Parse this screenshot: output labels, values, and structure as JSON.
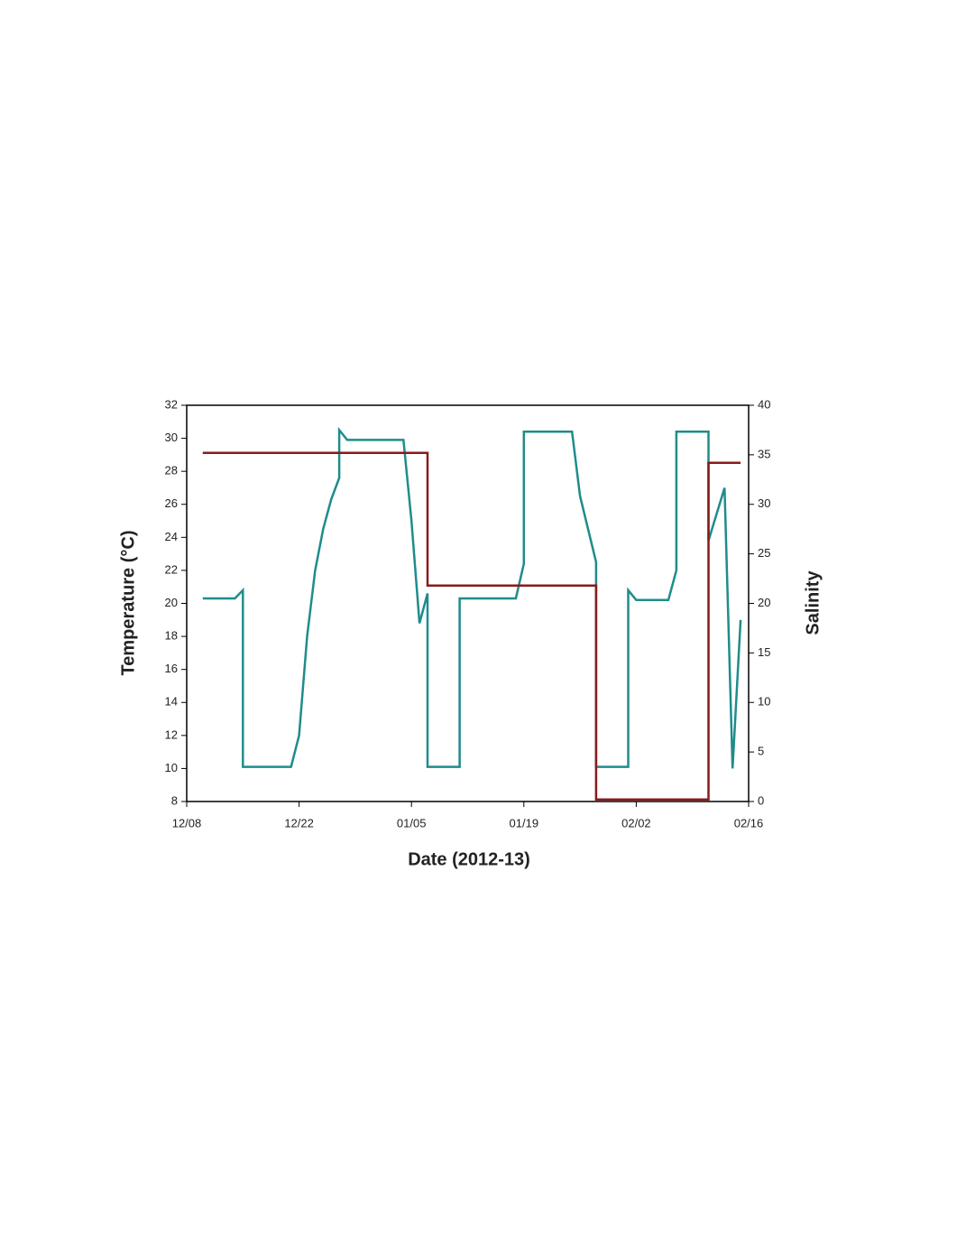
{
  "chart_data": {
    "type": "line",
    "x_label": "Date (2012-13)",
    "y_label": "Temperature (°C)",
    "y2_label": "Salinity",
    "xlim": [
      "12/08",
      "02/16"
    ],
    "xticks": [
      "12/08",
      "12/22",
      "01/05",
      "01/19",
      "02/02",
      "02/16"
    ],
    "ylim": [
      8,
      32
    ],
    "yticks": [
      8,
      10,
      12,
      14,
      16,
      18,
      20,
      22,
      24,
      26,
      28,
      30,
      32
    ],
    "y2lim": [
      0,
      40
    ],
    "y2ticks": [
      0,
      5,
      10,
      15,
      20,
      25,
      30,
      35,
      40
    ],
    "series": [
      {
        "name": "Temperature",
        "color": "#1f8c8c",
        "x": [
          "12/10",
          "12/14",
          "12/15",
          "12/15",
          "12/21",
          "12/22",
          "12/23",
          "12/24",
          "12/25",
          "12/26",
          "12/27",
          "12/27",
          "12/28",
          "01/04",
          "01/05",
          "01/06",
          "01/07",
          "01/07",
          "01/11",
          "01/11",
          "01/18",
          "01/19",
          "01/19",
          "01/25",
          "01/26",
          "01/27",
          "01/28",
          "01/28",
          "02/01",
          "02/01",
          "02/02",
          "02/06",
          "02/07",
          "02/07",
          "02/11",
          "02/11",
          "02/13",
          "02/14",
          "02/15"
        ],
        "values": [
          20.3,
          20.3,
          20.8,
          10.1,
          10.1,
          12,
          18,
          22,
          24.5,
          26.3,
          27.6,
          30.5,
          29.9,
          29.9,
          25,
          18.8,
          20.6,
          10.1,
          10.1,
          20.3,
          20.3,
          22.4,
          30.4,
          30.4,
          26.5,
          24.5,
          22.5,
          10.1,
          10.1,
          20.8,
          20.2,
          20.2,
          22,
          30.4,
          30.4,
          23.8,
          27,
          10,
          19
        ]
      },
      {
        "name": "Salinity",
        "color": "#8b1a1a",
        "axis": "y2",
        "x": [
          "12/10",
          "01/07",
          "01/07",
          "01/28",
          "01/28",
          "02/11",
          "02/11",
          "02/15"
        ],
        "values": [
          35.2,
          35.2,
          21.8,
          21.8,
          0.2,
          0.2,
          34.2,
          34.2
        ]
      }
    ]
  }
}
